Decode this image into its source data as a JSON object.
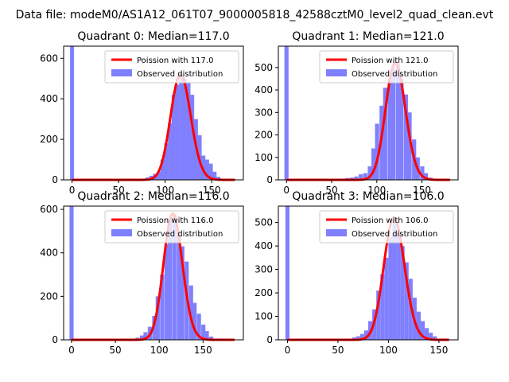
{
  "figure": {
    "suptitle": "Data file: modeM0/AS1A12_061T07_9000005818_42588cztM0_level2_quad_clean.evt",
    "colors": {
      "bars": "#8080ff",
      "curve": "#ff0000"
    }
  },
  "chart_data": [
    {
      "type": "bar",
      "title": "Quadrant 0: Median=117.0",
      "xlim": [
        -9,
        184
      ],
      "ylim": [
        0,
        660
      ],
      "xticks": [
        0,
        50,
        100,
        150
      ],
      "yticks": [
        0,
        200,
        400,
        600
      ],
      "legend": {
        "location": "upper right",
        "entries": [
          "Poission with 117.0",
          "Observed distribution"
        ]
      },
      "series": [
        {
          "name": "Observed distribution",
          "kind": "histogram",
          "bin_width": 4.2,
          "bins": [
            [
              -2.1,
              660
            ],
            [
              75,
              5
            ],
            [
              79,
              12
            ],
            [
              83,
              20
            ],
            [
              87,
              30
            ],
            [
              91,
              40
            ],
            [
              95,
              100
            ],
            [
              99,
              180
            ],
            [
              103,
              280
            ],
            [
              107,
              420
            ],
            [
              111,
              470
            ],
            [
              115,
              520
            ],
            [
              119,
              500
            ],
            [
              123,
              480
            ],
            [
              127,
              420
            ],
            [
              131,
              300
            ],
            [
              135,
              220
            ],
            [
              139,
              120
            ],
            [
              143,
              100
            ],
            [
              147,
              80
            ],
            [
              151,
              40
            ],
            [
              155,
              15
            ],
            [
              159,
              5
            ]
          ]
        },
        {
          "name": "Poission with 117.0",
          "kind": "line",
          "mean": 117.0,
          "x_range": [
            0,
            175
          ]
        }
      ]
    },
    {
      "type": "bar",
      "title": "Quadrant 1: Median=121.0",
      "xlim": [
        -9,
        190
      ],
      "ylim": [
        0,
        595
      ],
      "xticks": [
        0,
        50,
        100,
        150
      ],
      "yticks": [
        0,
        100,
        200,
        300,
        400,
        500
      ],
      "legend": {
        "location": "upper right",
        "entries": [
          "Poission with 121.0",
          "Observed distribution"
        ]
      },
      "series": [
        {
          "name": "Observed distribution",
          "kind": "histogram",
          "bin_width": 4.6,
          "bins": [
            [
              -2.3,
              595
            ],
            [
              60,
              5
            ],
            [
              65,
              8
            ],
            [
              70,
              10
            ],
            [
              75,
              15
            ],
            [
              80,
              25
            ],
            [
              85,
              30
            ],
            [
              90,
              60
            ],
            [
              94,
              140
            ],
            [
              98,
              250
            ],
            [
              103,
              330
            ],
            [
              107,
              410
            ],
            [
              112,
              450
            ],
            [
              116,
              500
            ],
            [
              121,
              520
            ],
            [
              125,
              450
            ],
            [
              130,
              380
            ],
            [
              134,
              300
            ],
            [
              139,
              180
            ],
            [
              143,
              100
            ],
            [
              148,
              60
            ],
            [
              152,
              30
            ],
            [
              157,
              10
            ]
          ]
        },
        {
          "name": "Poission with 121.0",
          "kind": "line",
          "mean": 121.0,
          "x_range": [
            0,
            181
          ]
        }
      ]
    },
    {
      "type": "bar",
      "title": "Quadrant 2: Median=116.0",
      "xlim": [
        -9,
        196
      ],
      "ylim": [
        0,
        615
      ],
      "xticks": [
        0,
        50,
        100,
        150
      ],
      "yticks": [
        0,
        200,
        400,
        600
      ],
      "legend": {
        "location": "upper right",
        "entries": [
          "Poission with 116.0",
          "Observed distribution"
        ]
      },
      "series": [
        {
          "name": "Observed distribution",
          "kind": "histogram",
          "bin_width": 4.7,
          "bins": [
            [
              -2.3,
              615
            ],
            [
              68,
              5
            ],
            [
              73,
              10
            ],
            [
              78,
              20
            ],
            [
              82,
              35
            ],
            [
              87,
              60
            ],
            [
              92,
              110
            ],
            [
              96,
              200
            ],
            [
              101,
              300
            ],
            [
              106,
              440
            ],
            [
              110,
              560
            ],
            [
              115,
              580
            ],
            [
              120,
              480
            ],
            [
              124,
              430
            ],
            [
              129,
              360
            ],
            [
              134,
              250
            ],
            [
              138,
              170
            ],
            [
              143,
              120
            ],
            [
              148,
              70
            ],
            [
              152,
              40
            ],
            [
              157,
              15
            ],
            [
              162,
              5
            ]
          ]
        },
        {
          "name": "Poission with 116.0",
          "kind": "line",
          "mean": 116.0,
          "x_range": [
            0,
            186
          ]
        }
      ]
    },
    {
      "type": "bar",
      "title": "Quadrant 3: Median=106.0",
      "xlim": [
        -9,
        169
      ],
      "ylim": [
        0,
        570
      ],
      "xticks": [
        0,
        50,
        100,
        150
      ],
      "yticks": [
        0,
        100,
        200,
        300,
        400,
        500
      ],
      "legend": {
        "location": "upper right",
        "entries": [
          "Poission with 106.0",
          "Observed distribution"
        ]
      },
      "series": [
        {
          "name": "Observed distribution",
          "kind": "histogram",
          "bin_width": 4.0,
          "bins": [
            [
              -2,
              570
            ],
            [
              60,
              5
            ],
            [
              64,
              10
            ],
            [
              68,
              15
            ],
            [
              72,
              25
            ],
            [
              76,
              40
            ],
            [
              80,
              80
            ],
            [
              84,
              130
            ],
            [
              88,
              210
            ],
            [
              92,
              280
            ],
            [
              96,
              350
            ],
            [
              100,
              440
            ],
            [
              104,
              520
            ],
            [
              108,
              460
            ],
            [
              112,
              400
            ],
            [
              116,
              330
            ],
            [
              120,
              260
            ],
            [
              124,
              180
            ],
            [
              128,
              120
            ],
            [
              132,
              80
            ],
            [
              136,
              50
            ],
            [
              140,
              30
            ],
            [
              144,
              15
            ]
          ]
        },
        {
          "name": "Poission with 106.0",
          "kind": "line",
          "mean": 106.0,
          "x_range": [
            0,
            160
          ]
        }
      ]
    }
  ]
}
